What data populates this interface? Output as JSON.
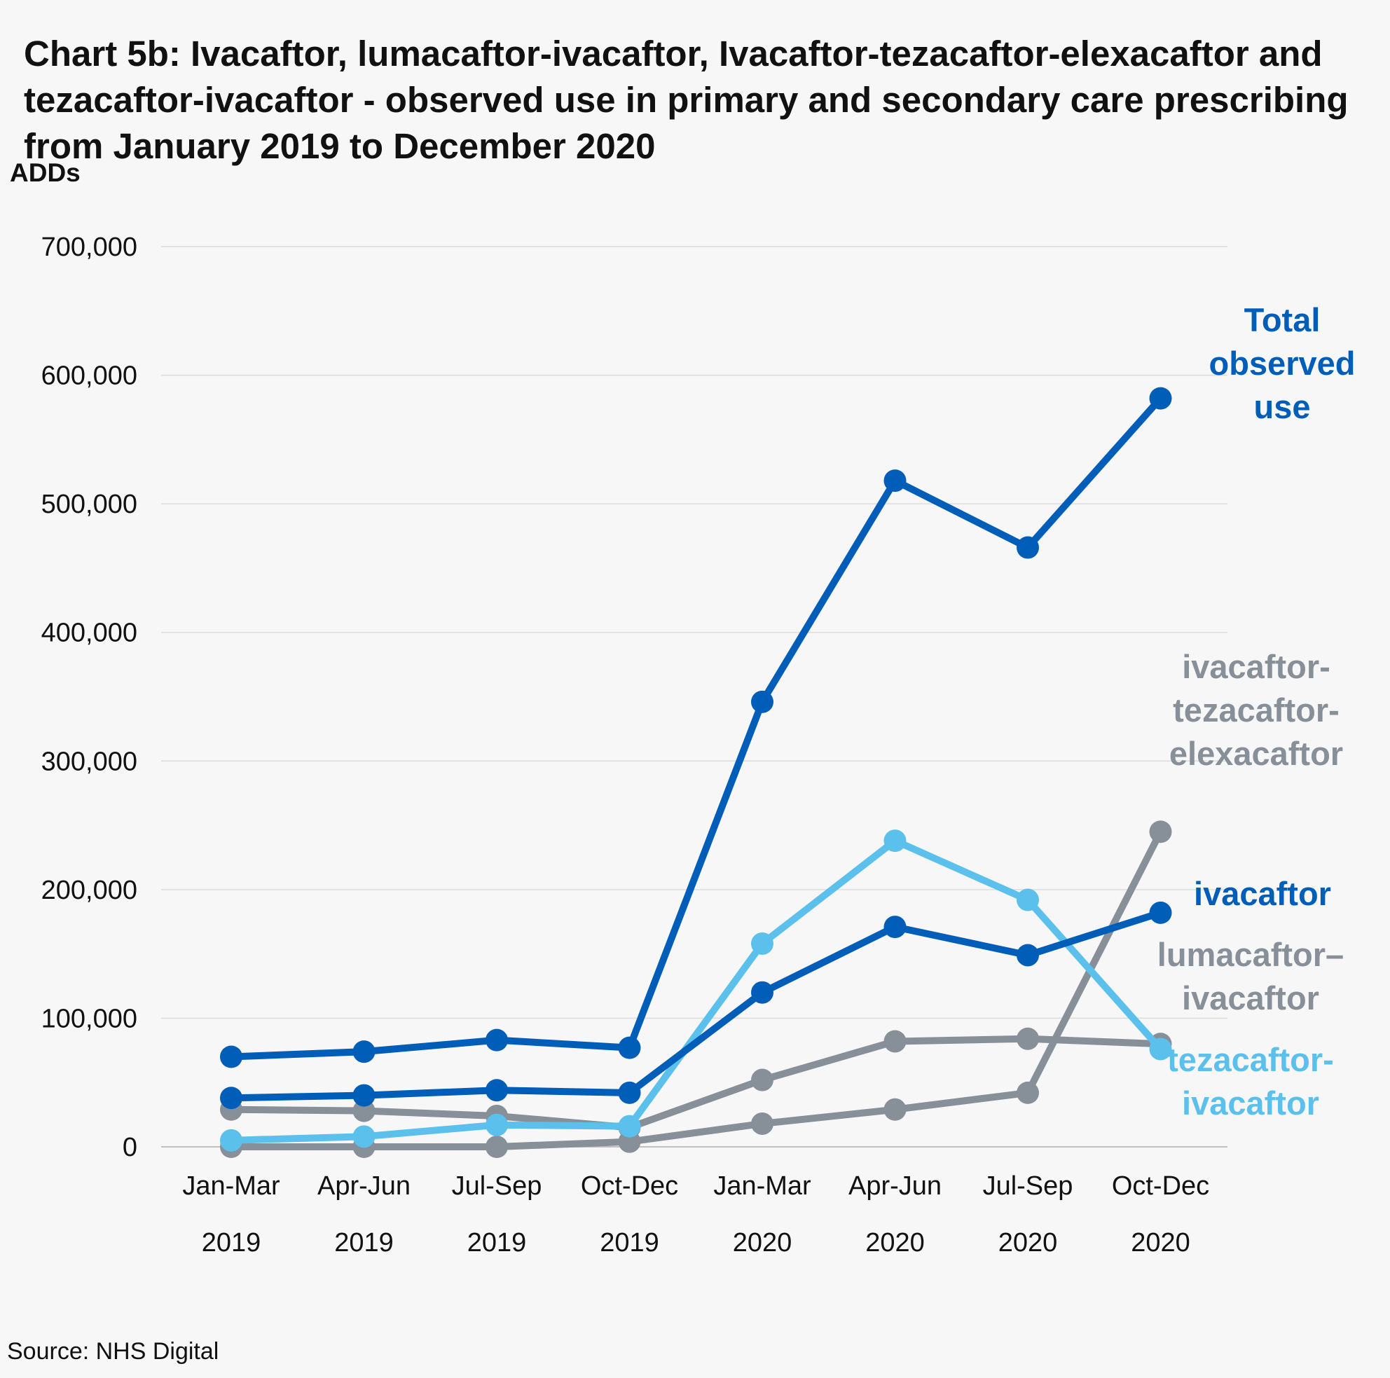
{
  "title": "Chart  5b:  Ivacaftor, lumacaftor-ivacaftor, Ivacaftor-tezacaftor-elexacaftor  and tezacaftor-ivacaftor - observed use in primary and secondary care prescribing from January 2019 to December 2020",
  "source": "Source: NHS Digital",
  "chart_data": {
    "type": "line",
    "title": "Chart  5b:  Ivacaftor, lumacaftor-ivacaftor, Ivacaftor-tezacaftor-elexacaftor  and tezacaftor-ivacaftor - observed use in primary and secondary care prescribing from January 2019 to December 2020",
    "ylabel": "ADDs",
    "xlabel": "",
    "ylim": [
      0,
      700000
    ],
    "yticks": [
      0,
      100000,
      200000,
      300000,
      400000,
      500000,
      600000,
      700000
    ],
    "ytick_labels": [
      "0",
      "100,000",
      "200,000",
      "300,000",
      "400,000",
      "500,000",
      "600,000",
      "700,000"
    ],
    "grid": true,
    "legend": "direct labels at right end of lines",
    "categories": [
      {
        "period": "Jan-Mar",
        "year": "2019"
      },
      {
        "period": "Apr-Jun",
        "year": "2019"
      },
      {
        "period": "Jul-Sep",
        "year": "2019"
      },
      {
        "period": "Oct-Dec",
        "year": "2019"
      },
      {
        "period": "Jan-Mar",
        "year": "2020"
      },
      {
        "period": "Apr-Jun",
        "year": "2020"
      },
      {
        "period": "Jul-Sep",
        "year": "2020"
      },
      {
        "period": "Oct-Dec",
        "year": "2020"
      }
    ],
    "series": [
      {
        "name": "lumacaftor–ivacaftor",
        "label_lines": [
          "lumacaftor–",
          "ivacaftor"
        ],
        "color": "#878f99",
        "values": [
          29000,
          28000,
          24000,
          15000,
          52000,
          82000,
          84000,
          80000
        ]
      },
      {
        "name": "ivacaftor-tezacaftor-elexacaftor",
        "label_lines": [
          "ivacaftor-",
          "tezacaftor-",
          "elexacaftor"
        ],
        "color": "#878f99",
        "values": [
          0,
          0,
          0,
          4000,
          18000,
          29000,
          42000,
          245000
        ]
      },
      {
        "name": "tezacaftor-ivacaftor",
        "label_lines": [
          "tezacaftor-",
          "ivacaftor"
        ],
        "color": "#5bc0eb",
        "values": [
          5000,
          8000,
          17000,
          16000,
          158000,
          238000,
          192000,
          76000
        ]
      },
      {
        "name": "ivacaftor",
        "label_lines": [
          "ivacaftor"
        ],
        "color": "#005eb8",
        "values": [
          38000,
          40000,
          44000,
          42000,
          120000,
          171000,
          149000,
          182000
        ]
      },
      {
        "name": "Total observed use",
        "label_lines": [
          "Total",
          "observed",
          "use"
        ],
        "color": "#005eb8",
        "values": [
          70000,
          74000,
          83000,
          77000,
          346000,
          518000,
          466000,
          582000
        ]
      }
    ]
  }
}
